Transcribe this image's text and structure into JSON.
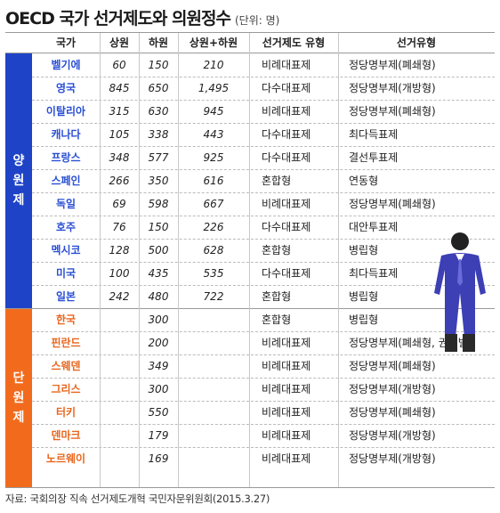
{
  "title": "OECD 국가 선거제도와 의원정수",
  "unit": "(단위: 명)",
  "headers": {
    "country": "국가",
    "upper": "상원",
    "lower": "하원",
    "total": "상원+하원",
    "system": "선거제도 유형",
    "type": "선거유형"
  },
  "groups": {
    "bicameral": "양\n원\n제",
    "unicameral": "단\n원\n제"
  },
  "colors": {
    "bicameral": "#1f43c7",
    "unicameral": "#f26b1d"
  },
  "rows": [
    {
      "country": "벨기에",
      "upper": "60",
      "lower": "150",
      "total": "210",
      "system": "비례대표제",
      "type": "정당명부제(폐쇄형)"
    },
    {
      "country": "영국",
      "upper": "845",
      "lower": "650",
      "total": "1,495",
      "system": "다수대표제",
      "type": "정당명부제(개방형)"
    },
    {
      "country": "이탈리아",
      "upper": "315",
      "lower": "630",
      "total": "945",
      "system": "비례대표제",
      "type": "정당명부제(폐쇄형)"
    },
    {
      "country": "캐나다",
      "upper": "105",
      "lower": "338",
      "total": "443",
      "system": "다수대표제",
      "type": "최다득표제"
    },
    {
      "country": "프랑스",
      "upper": "348",
      "lower": "577",
      "total": "925",
      "system": "다수대표제",
      "type": "결선투표제"
    },
    {
      "country": "스페인",
      "upper": "266",
      "lower": "350",
      "total": "616",
      "system": "혼합형",
      "type": "연동형"
    },
    {
      "country": "독일",
      "upper": "69",
      "lower": "598",
      "total": "667",
      "system": "비례대표제",
      "type": "정당명부제(폐쇄형)"
    },
    {
      "country": "호주",
      "upper": "76",
      "lower": "150",
      "total": "226",
      "system": "다수대표제",
      "type": "대안투표제"
    },
    {
      "country": "멕시코",
      "upper": "128",
      "lower": "500",
      "total": "628",
      "system": "혼합형",
      "type": "병립형"
    },
    {
      "country": "미국",
      "upper": "100",
      "lower": "435",
      "total": "535",
      "system": "다수대표제",
      "type": "최다득표제"
    },
    {
      "country": "일본",
      "upper": "242",
      "lower": "480",
      "total": "722",
      "system": "혼합형",
      "type": "병립형"
    },
    {
      "country": "한국",
      "upper": "",
      "lower": "300",
      "total": "",
      "system": "혼합형",
      "type": "병립형"
    },
    {
      "country": "핀란드",
      "upper": "",
      "lower": "200",
      "total": "",
      "system": "비례대표제",
      "type": "정당명부제(폐쇄형, 권역별)"
    },
    {
      "country": "스웨덴",
      "upper": "",
      "lower": "349",
      "total": "",
      "system": "비례대표제",
      "type": "정당명부제(폐쇄형)"
    },
    {
      "country": "그리스",
      "upper": "",
      "lower": "300",
      "total": "",
      "system": "비례대표제",
      "type": "정당명부제(개방형)"
    },
    {
      "country": "터키",
      "upper": "",
      "lower": "550",
      "total": "",
      "system": "비례대표제",
      "type": "정당명부제(폐쇄형)"
    },
    {
      "country": "덴마크",
      "upper": "",
      "lower": "179",
      "total": "",
      "system": "비례대표제",
      "type": "정당명부제(개방형)"
    },
    {
      "country": "노르웨이",
      "upper": "",
      "lower": "169",
      "total": "",
      "system": "비례대표제",
      "type": "정당명부제(개방형)"
    }
  ],
  "source": "자료: 국회의장 직속 선거제도개혁 국민자문위원회(2015.3.27)"
}
